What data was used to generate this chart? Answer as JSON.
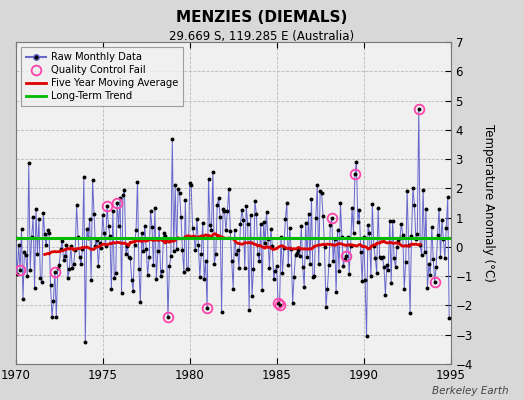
{
  "title": "MENZIES (DIEMALS)",
  "subtitle": "29.669 S, 119.285 E (Australia)",
  "ylabel": "Temperature Anomaly (°C)",
  "watermark": "Berkeley Earth",
  "xlim": [
    1970,
    1995
  ],
  "ylim": [
    -4,
    7
  ],
  "yticks": [
    -4,
    -3,
    -2,
    -1,
    0,
    1,
    2,
    3,
    4,
    5,
    6,
    7
  ],
  "xticks": [
    1970,
    1975,
    1980,
    1985,
    1990,
    1995
  ],
  "bg_color": "#d8d8d8",
  "plot_bg_color": "#f0f0f0",
  "raw_color": "#6666cc",
  "ma_color": "#dd0000",
  "trend_color": "#00bb00",
  "qc_color": "#ff44aa",
  "seed": 12,
  "n_months": 300,
  "start_year": 1970.0,
  "trend_y_const": 0.3
}
